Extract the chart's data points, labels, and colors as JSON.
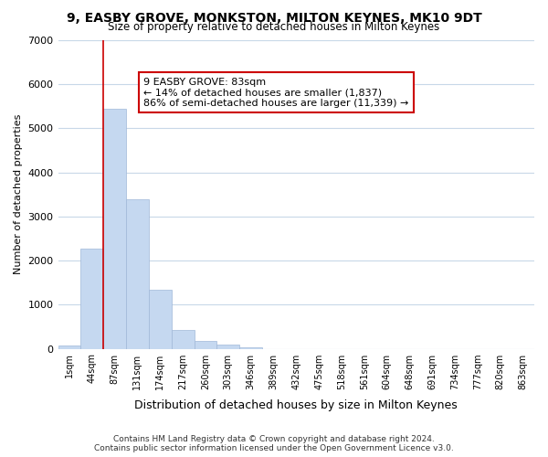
{
  "title": "9, EASBY GROVE, MONKSTON, MILTON KEYNES, MK10 9DT",
  "subtitle": "Size of property relative to detached houses in Milton Keynes",
  "xlabel": "Distribution of detached houses by size in Milton Keynes",
  "ylabel": "Number of detached properties",
  "bar_color": "#c5d8f0",
  "bar_edgecolor": "#a0b8d8",
  "background_color": "#ffffff",
  "grid_color": "#c8d8e8",
  "xlim_left": 0,
  "xlim_right": 21,
  "ylim": [
    0,
    7000
  ],
  "yticks": [
    0,
    1000,
    2000,
    3000,
    4000,
    5000,
    6000,
    7000
  ],
  "bin_labels": [
    "1sqm",
    "44sqm",
    "87sqm",
    "131sqm",
    "174sqm",
    "217sqm",
    "260sqm",
    "303sqm",
    "346sqm",
    "389sqm",
    "432sqm",
    "475sqm",
    "518sqm",
    "561sqm",
    "604sqm",
    "648sqm",
    "691sqm",
    "734sqm",
    "777sqm",
    "820sqm",
    "863sqm"
  ],
  "bar_heights": [
    75,
    2270,
    5450,
    3400,
    1340,
    430,
    175,
    90,
    40,
    0,
    0,
    0,
    0,
    0,
    0,
    0,
    0,
    0,
    0,
    0
  ],
  "vline_x": 2,
  "vline_color": "#cc0000",
  "annotation_title": "9 EASBY GROVE: 83sqm",
  "annotation_line1": "← 14% of detached houses are smaller (1,837)",
  "annotation_line2": "86% of semi-detached houses are larger (11,339) →",
  "annotation_box_color": "#ffffff",
  "annotation_border_color": "#cc0000",
  "footer_line1": "Contains HM Land Registry data © Crown copyright and database right 2024.",
  "footer_line2": "Contains public sector information licensed under the Open Government Licence v3.0."
}
